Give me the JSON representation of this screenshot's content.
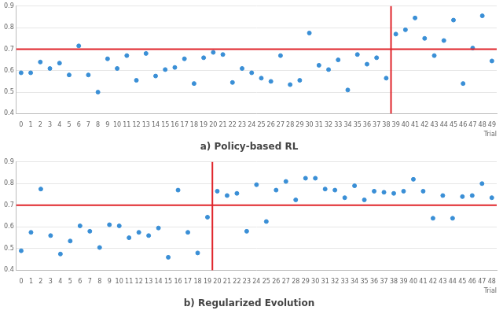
{
  "chart_data": [
    {
      "type": "scatter",
      "title": "a) Policy-based RL",
      "x_label": "Trial",
      "x": [
        0,
        1,
        2,
        3,
        4,
        5,
        6,
        7,
        8,
        9,
        10,
        11,
        12,
        13,
        14,
        15,
        16,
        17,
        18,
        19,
        20,
        21,
        22,
        23,
        24,
        25,
        26,
        27,
        28,
        29,
        30,
        31,
        32,
        33,
        34,
        35,
        36,
        37,
        38,
        39,
        40,
        41,
        42,
        43,
        44,
        45,
        46,
        47,
        48,
        49
      ],
      "values": [
        0.59,
        0.59,
        0.64,
        0.61,
        0.635,
        0.58,
        0.715,
        0.58,
        0.5,
        0.655,
        0.61,
        0.67,
        0.555,
        0.68,
        0.575,
        0.605,
        0.615,
        0.655,
        0.54,
        0.66,
        0.685,
        0.675,
        0.545,
        0.61,
        0.59,
        0.565,
        0.55,
        0.67,
        0.535,
        0.555,
        0.775,
        0.625,
        0.605,
        0.65,
        0.51,
        0.675,
        0.63,
        0.66,
        0.565,
        0.77,
        0.79,
        0.845,
        0.75,
        0.67,
        0.74,
        0.835,
        0.54,
        0.705,
        0.855,
        0.645
      ],
      "color": "#3a8fd6",
      "xlim": [
        -0.5,
        49.5
      ],
      "xticks": [
        0,
        1,
        2,
        3,
        4,
        5,
        6,
        7,
        8,
        9,
        10,
        11,
        12,
        13,
        14,
        15,
        16,
        17,
        18,
        19,
        20,
        21,
        22,
        23,
        24,
        25,
        26,
        27,
        28,
        29,
        30,
        31,
        32,
        33,
        34,
        35,
        36,
        37,
        38,
        39,
        40,
        41,
        42,
        43,
        44,
        45,
        46,
        47,
        48,
        49
      ],
      "ylim": [
        0.4,
        0.9
      ],
      "yticks": [
        0.4,
        0.5,
        0.6,
        0.7,
        0.8,
        0.9
      ],
      "grid": true,
      "hline": 0.7,
      "vline": 38.5
    },
    {
      "type": "scatter",
      "title": "b) Regularized Evolution",
      "x_label": "Trial",
      "x": [
        0,
        1,
        2,
        3,
        4,
        5,
        6,
        7,
        8,
        9,
        10,
        11,
        12,
        13,
        14,
        15,
        16,
        17,
        18,
        19,
        20,
        21,
        22,
        23,
        24,
        25,
        26,
        27,
        28,
        29,
        30,
        31,
        32,
        33,
        34,
        35,
        36,
        37,
        38,
        39,
        40,
        41,
        42,
        43,
        44,
        45,
        46,
        47,
        48
      ],
      "values": [
        0.49,
        0.575,
        0.775,
        0.56,
        0.475,
        0.535,
        0.605,
        0.58,
        0.505,
        0.61,
        0.605,
        0.55,
        0.575,
        0.56,
        0.595,
        0.46,
        0.77,
        0.575,
        0.48,
        0.645,
        0.765,
        0.745,
        0.755,
        0.58,
        0.795,
        0.625,
        0.77,
        0.81,
        0.725,
        0.825,
        0.825,
        0.775,
        0.77,
        0.735,
        0.79,
        0.725,
        0.765,
        0.76,
        0.755,
        0.765,
        0.82,
        0.765,
        0.64,
        0.745,
        0.64,
        0.74,
        0.745,
        0.8,
        0.735
      ],
      "color": "#3a8fd6",
      "xlim": [
        -0.5,
        48.5
      ],
      "xticks": [
        0,
        1,
        2,
        3,
        4,
        5,
        6,
        7,
        8,
        9,
        10,
        11,
        12,
        13,
        14,
        15,
        16,
        17,
        18,
        19,
        20,
        21,
        22,
        23,
        24,
        25,
        26,
        27,
        28,
        29,
        30,
        31,
        32,
        33,
        34,
        35,
        36,
        37,
        38,
        39,
        40,
        41,
        42,
        43,
        44,
        45,
        46,
        47,
        48
      ],
      "ylim": [
        0.4,
        0.9
      ],
      "yticks": [
        0.4,
        0.5,
        0.6,
        0.7,
        0.8,
        0.9
      ],
      "grid": true,
      "hline": 0.7,
      "vline": 19.5
    }
  ]
}
